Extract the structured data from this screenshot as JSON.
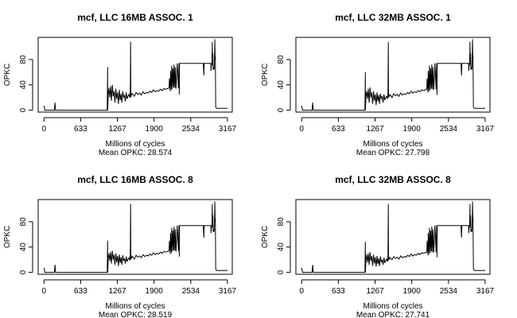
{
  "chart_data": [
    {
      "type": "line",
      "title": "mcf, LLC 16MB ASSOC. 1",
      "xlabel": "Millions of cycles",
      "ylabel": "OPKC",
      "subtitle": "Mean OPKC: 28.574",
      "x_ticks": [
        0,
        633,
        1267,
        1900,
        2534,
        3167
      ],
      "y_ticks": [
        0,
        40,
        80
      ],
      "xlim": [
        -100,
        3250
      ],
      "ylim": [
        -3,
        115
      ],
      "grid": false,
      "series": [
        {
          "x": [
            0,
            15,
            25,
            180,
            190,
            200,
            1090,
            1092,
            1098,
            1100,
            1110,
            1120,
            1135,
            1150,
            1165,
            1180,
            1195,
            1210,
            1225,
            1240,
            1255,
            1270,
            1285,
            1300,
            1315,
            1330,
            1345,
            1360,
            1375,
            1390,
            1405,
            1420,
            1435,
            1450,
            1465,
            1480,
            1490,
            1495,
            1500,
            1505,
            1510,
            1530,
            1560,
            1590,
            1620,
            1650,
            1680,
            1710,
            1740,
            1770,
            1800,
            1830,
            1860,
            1890,
            1920,
            1950,
            1980,
            2010,
            2040,
            2070,
            2100,
            2130,
            2160,
            2165,
            2180,
            2185,
            2200,
            2205,
            2220,
            2225,
            2240,
            2245,
            2260,
            2265,
            2280,
            2300,
            2320,
            2330,
            2335,
            2340,
            2360,
            2400,
            2450,
            2500,
            2550,
            2600,
            2650,
            2700,
            2750,
            2760,
            2765,
            2770,
            2800,
            2830,
            2860,
            2880,
            2885,
            2890,
            2900,
            2905,
            2910,
            2915,
            2920,
            2930,
            2935,
            2940,
            2950,
            2955,
            2958,
            2965,
            2980,
            3000,
            3020,
            3040,
            3100,
            3167
          ],
          "y": [
            7,
            0,
            0,
            0,
            12,
            0,
            0,
            0,
            68,
            0,
            25,
            35,
            20,
            38,
            15,
            40,
            22,
            30,
            12,
            34,
            18,
            28,
            10,
            32,
            16,
            26,
            12,
            30,
            20,
            24,
            14,
            28,
            18,
            22,
            25,
            20,
            30,
            108,
            20,
            28,
            24,
            26,
            22,
            28,
            25,
            27,
            24,
            29,
            26,
            28,
            27,
            30,
            28,
            32,
            29,
            31,
            30,
            33,
            31,
            34,
            33,
            34,
            35,
            50,
            30,
            62,
            32,
            70,
            34,
            66,
            36,
            72,
            35,
            68,
            34,
            74,
            35,
            74,
            25,
            74,
            74,
            74,
            74,
            74,
            74,
            74,
            74,
            74,
            74,
            55,
            74,
            74,
            74,
            74,
            74,
            74,
            62,
            74,
            74,
            108,
            70,
            90,
            64,
            68,
            64,
            66,
            112,
            80,
            86,
            5,
            3,
            3,
            3,
            3,
            3,
            3
          ]
        }
      ]
    },
    {
      "type": "line",
      "title": "mcf, LLC 32MB ASSOC. 1",
      "xlabel": "Millions of cycles",
      "ylabel": "OPKC",
      "subtitle": "Mean OPKC: 27.798",
      "x_ticks": [
        0,
        633,
        1267,
        1900,
        2534,
        3167
      ],
      "y_ticks": [
        0,
        40,
        80
      ],
      "xlim": [
        -100,
        3250
      ],
      "ylim": [
        -3,
        115
      ],
      "grid": false,
      "series": [
        {
          "x": [
            0,
            15,
            25,
            180,
            190,
            200,
            1090,
            1092,
            1098,
            1100,
            1110,
            1120,
            1135,
            1150,
            1165,
            1180,
            1195,
            1210,
            1225,
            1240,
            1255,
            1270,
            1285,
            1300,
            1315,
            1330,
            1345,
            1360,
            1375,
            1390,
            1405,
            1420,
            1435,
            1450,
            1465,
            1480,
            1490,
            1495,
            1500,
            1505,
            1510,
            1530,
            1560,
            1590,
            1620,
            1650,
            1680,
            1710,
            1740,
            1770,
            1800,
            1830,
            1860,
            1890,
            1920,
            1950,
            1980,
            2010,
            2040,
            2070,
            2100,
            2130,
            2160,
            2165,
            2180,
            2185,
            2200,
            2205,
            2220,
            2225,
            2240,
            2245,
            2260,
            2265,
            2280,
            2300,
            2320,
            2330,
            2335,
            2340,
            2360,
            2400,
            2450,
            2500,
            2550,
            2600,
            2650,
            2700,
            2750,
            2760,
            2765,
            2770,
            2800,
            2830,
            2860,
            2880,
            2885,
            2890,
            2900,
            2905,
            2910,
            2915,
            2920,
            2930,
            2935,
            2940,
            2950,
            2955,
            2958,
            2965,
            2980,
            3000,
            3020,
            3040,
            3100,
            3167
          ],
          "y": [
            7,
            0,
            0,
            0,
            12,
            0,
            0,
            0,
            60,
            0,
            22,
            30,
            18,
            34,
            12,
            36,
            20,
            28,
            10,
            30,
            15,
            25,
            8,
            28,
            14,
            24,
            10,
            26,
            18,
            22,
            12,
            25,
            16,
            20,
            22,
            18,
            28,
            108,
            20,
            26,
            22,
            24,
            20,
            26,
            23,
            25,
            22,
            27,
            24,
            26,
            25,
            28,
            26,
            30,
            27,
            29,
            28,
            31,
            29,
            32,
            31,
            32,
            33,
            50,
            28,
            62,
            30,
            70,
            32,
            66,
            34,
            72,
            33,
            68,
            32,
            74,
            33,
            74,
            24,
            74,
            74,
            74,
            74,
            74,
            74,
            74,
            74,
            74,
            74,
            55,
            74,
            74,
            74,
            74,
            74,
            74,
            62,
            74,
            74,
            108,
            70,
            90,
            64,
            68,
            64,
            66,
            112,
            80,
            86,
            5,
            3,
            3,
            3,
            3,
            3,
            3
          ]
        }
      ]
    },
    {
      "type": "line",
      "title": "mcf, LLC 16MB ASSOC. 8",
      "xlabel": "Millions of cycles",
      "ylabel": "OPKC",
      "subtitle": "Mean OPKC: 28.519",
      "x_ticks": [
        0,
        633,
        1267,
        1900,
        2534,
        3167
      ],
      "y_ticks": [
        0,
        40,
        80
      ],
      "xlim": [
        -100,
        3250
      ],
      "ylim": [
        -3,
        115
      ],
      "grid": false,
      "series": [
        {
          "x": [
            0,
            15,
            25,
            180,
            190,
            200,
            1090,
            1092,
            1098,
            1100,
            1110,
            1120,
            1135,
            1150,
            1165,
            1180,
            1195,
            1210,
            1225,
            1240,
            1255,
            1270,
            1285,
            1300,
            1315,
            1330,
            1345,
            1360,
            1375,
            1390,
            1405,
            1420,
            1435,
            1450,
            1465,
            1480,
            1490,
            1495,
            1500,
            1505,
            1510,
            1530,
            1560,
            1590,
            1620,
            1650,
            1680,
            1710,
            1740,
            1770,
            1800,
            1830,
            1860,
            1890,
            1920,
            1950,
            1980,
            2010,
            2040,
            2070,
            2100,
            2130,
            2160,
            2165,
            2180,
            2185,
            2200,
            2205,
            2220,
            2225,
            2240,
            2245,
            2260,
            2265,
            2280,
            2300,
            2320,
            2330,
            2335,
            2340,
            2360,
            2400,
            2450,
            2500,
            2550,
            2600,
            2650,
            2700,
            2750,
            2760,
            2765,
            2770,
            2800,
            2830,
            2860,
            2880,
            2885,
            2890,
            2900,
            2905,
            2910,
            2915,
            2920,
            2930,
            2935,
            2940,
            2950,
            2955,
            2958,
            2965,
            2980,
            3000,
            3020,
            3040,
            3100,
            3167
          ],
          "y": [
            7,
            0,
            0,
            0,
            12,
            0,
            0,
            0,
            50,
            0,
            22,
            30,
            18,
            32,
            14,
            34,
            20,
            28,
            12,
            30,
            16,
            26,
            10,
            28,
            15,
            24,
            12,
            27,
            18,
            22,
            14,
            25,
            17,
            21,
            23,
            19,
            28,
            108,
            20,
            27,
            23,
            25,
            21,
            27,
            24,
            26,
            23,
            28,
            25,
            27,
            26,
            29,
            27,
            31,
            28,
            30,
            29,
            32,
            30,
            33,
            32,
            33,
            34,
            50,
            29,
            62,
            31,
            70,
            33,
            66,
            35,
            72,
            34,
            68,
            33,
            74,
            34,
            74,
            25,
            74,
            74,
            74,
            74,
            74,
            74,
            74,
            74,
            74,
            74,
            55,
            74,
            74,
            74,
            74,
            74,
            74,
            62,
            74,
            74,
            108,
            70,
            90,
            64,
            68,
            64,
            66,
            112,
            80,
            86,
            5,
            3,
            3,
            3,
            3,
            3,
            3
          ]
        }
      ]
    },
    {
      "type": "line",
      "title": "mcf, LLC 32MB ASSOC. 8",
      "xlabel": "Millions of cycles",
      "ylabel": "OPKC",
      "subtitle": "Mean OPKC: 27.741",
      "x_ticks": [
        0,
        633,
        1267,
        1900,
        2534,
        3167
      ],
      "y_ticks": [
        0,
        40,
        80
      ],
      "xlim": [
        -100,
        3250
      ],
      "ylim": [
        -3,
        115
      ],
      "grid": false,
      "series": [
        {
          "x": [
            0,
            15,
            25,
            180,
            190,
            200,
            1090,
            1092,
            1098,
            1100,
            1110,
            1120,
            1135,
            1150,
            1165,
            1180,
            1195,
            1210,
            1225,
            1240,
            1255,
            1270,
            1285,
            1300,
            1315,
            1330,
            1345,
            1360,
            1375,
            1390,
            1405,
            1420,
            1435,
            1450,
            1465,
            1480,
            1490,
            1495,
            1500,
            1505,
            1510,
            1530,
            1560,
            1590,
            1620,
            1650,
            1680,
            1710,
            1740,
            1770,
            1800,
            1830,
            1860,
            1890,
            1920,
            1950,
            1980,
            2010,
            2040,
            2070,
            2100,
            2130,
            2160,
            2165,
            2180,
            2185,
            2200,
            2205,
            2220,
            2225,
            2240,
            2245,
            2260,
            2265,
            2280,
            2300,
            2320,
            2330,
            2335,
            2340,
            2360,
            2400,
            2450,
            2500,
            2550,
            2600,
            2650,
            2700,
            2750,
            2760,
            2765,
            2770,
            2800,
            2830,
            2860,
            2880,
            2885,
            2890,
            2900,
            2905,
            2910,
            2915,
            2920,
            2930,
            2935,
            2940,
            2950,
            2955,
            2958,
            2965,
            2980,
            3000,
            3020,
            3040,
            3100,
            3167
          ],
          "y": [
            7,
            0,
            0,
            0,
            12,
            0,
            0,
            0,
            48,
            0,
            20,
            28,
            16,
            30,
            12,
            32,
            18,
            26,
            10,
            28,
            14,
            24,
            9,
            26,
            13,
            22,
            10,
            25,
            16,
            20,
            12,
            23,
            15,
            19,
            21,
            17,
            26,
            108,
            19,
            25,
            21,
            23,
            20,
            25,
            22,
            24,
            21,
            26,
            23,
            25,
            24,
            27,
            25,
            29,
            26,
            28,
            27,
            30,
            28,
            31,
            30,
            31,
            32,
            50,
            27,
            62,
            29,
            70,
            31,
            66,
            33,
            72,
            32,
            68,
            31,
            74,
            32,
            74,
            24,
            74,
            74,
            74,
            74,
            74,
            74,
            74,
            74,
            74,
            74,
            55,
            74,
            74,
            74,
            74,
            74,
            74,
            62,
            74,
            74,
            108,
            70,
            90,
            64,
            68,
            64,
            66,
            112,
            80,
            86,
            5,
            3,
            3,
            3,
            3,
            3,
            3
          ]
        }
      ]
    }
  ]
}
